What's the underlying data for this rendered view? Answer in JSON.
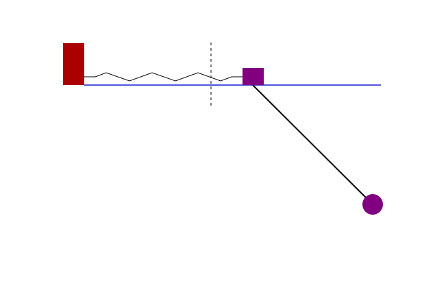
{
  "scene": {
    "background": "#ffffff",
    "wall_color": "#aa0000",
    "track_color": "#5555dd",
    "spring_color": "#000000",
    "cart_color": "#800080",
    "rod_color": "#000000",
    "bob_color": "#800080",
    "equilibrium_line_color": "#000000"
  }
}
